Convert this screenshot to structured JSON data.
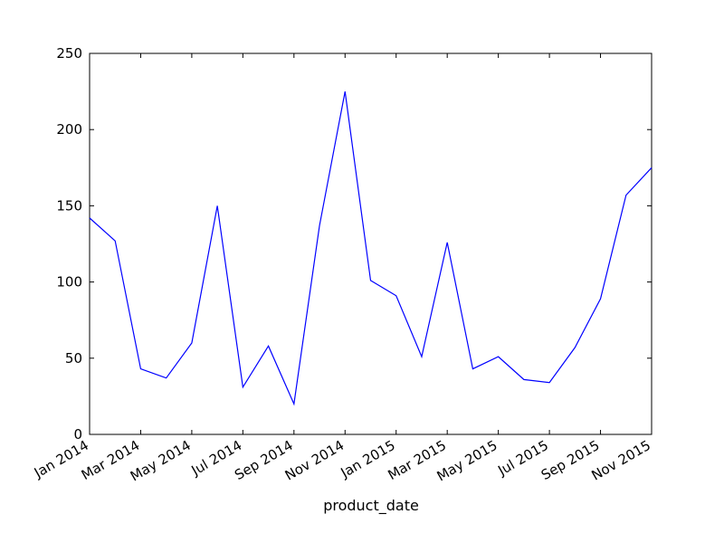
{
  "chart_data": {
    "type": "line",
    "title": "",
    "xlabel": "product_date",
    "ylabel": "",
    "ylim": [
      0,
      250
    ],
    "yticks": [
      "0",
      "50",
      "100",
      "150",
      "200",
      "250"
    ],
    "xlim": [
      "2014-01",
      "2015-11"
    ],
    "xticks": [
      {
        "date": "2014-01",
        "label": "Jan 2014"
      },
      {
        "date": "2014-03",
        "label": "Mar 2014"
      },
      {
        "date": "2014-05",
        "label": "May 2014"
      },
      {
        "date": "2014-07",
        "label": "Jul 2014"
      },
      {
        "date": "2014-09",
        "label": "Sep 2014"
      },
      {
        "date": "2014-11",
        "label": "Nov 2014"
      },
      {
        "date": "2015-01",
        "label": "Jan 2015"
      },
      {
        "date": "2015-03",
        "label": "Mar 2015"
      },
      {
        "date": "2015-05",
        "label": "May 2015"
      },
      {
        "date": "2015-07",
        "label": "Jul 2015"
      },
      {
        "date": "2015-09",
        "label": "Sep 2015"
      },
      {
        "date": "2015-11",
        "label": "Nov 2015"
      }
    ],
    "grid": false,
    "legend": "none",
    "series": [
      {
        "color": "#0000ff",
        "x": [
          "2014-01",
          "2014-02",
          "2014-03",
          "2014-04",
          "2014-05",
          "2014-06",
          "2014-07",
          "2014-08",
          "2014-09",
          "2014-10",
          "2014-11",
          "2014-12",
          "2015-01",
          "2015-02",
          "2015-03",
          "2015-04",
          "2015-05",
          "2015-06",
          "2015-07",
          "2015-08",
          "2015-09",
          "2015-10",
          "2015-11"
        ],
        "values": [
          142,
          127,
          43,
          37,
          60,
          150,
          31,
          58,
          20,
          137,
          225,
          101,
          91,
          51,
          126,
          43,
          51,
          36,
          34,
          57,
          89,
          157,
          175
        ]
      }
    ]
  }
}
